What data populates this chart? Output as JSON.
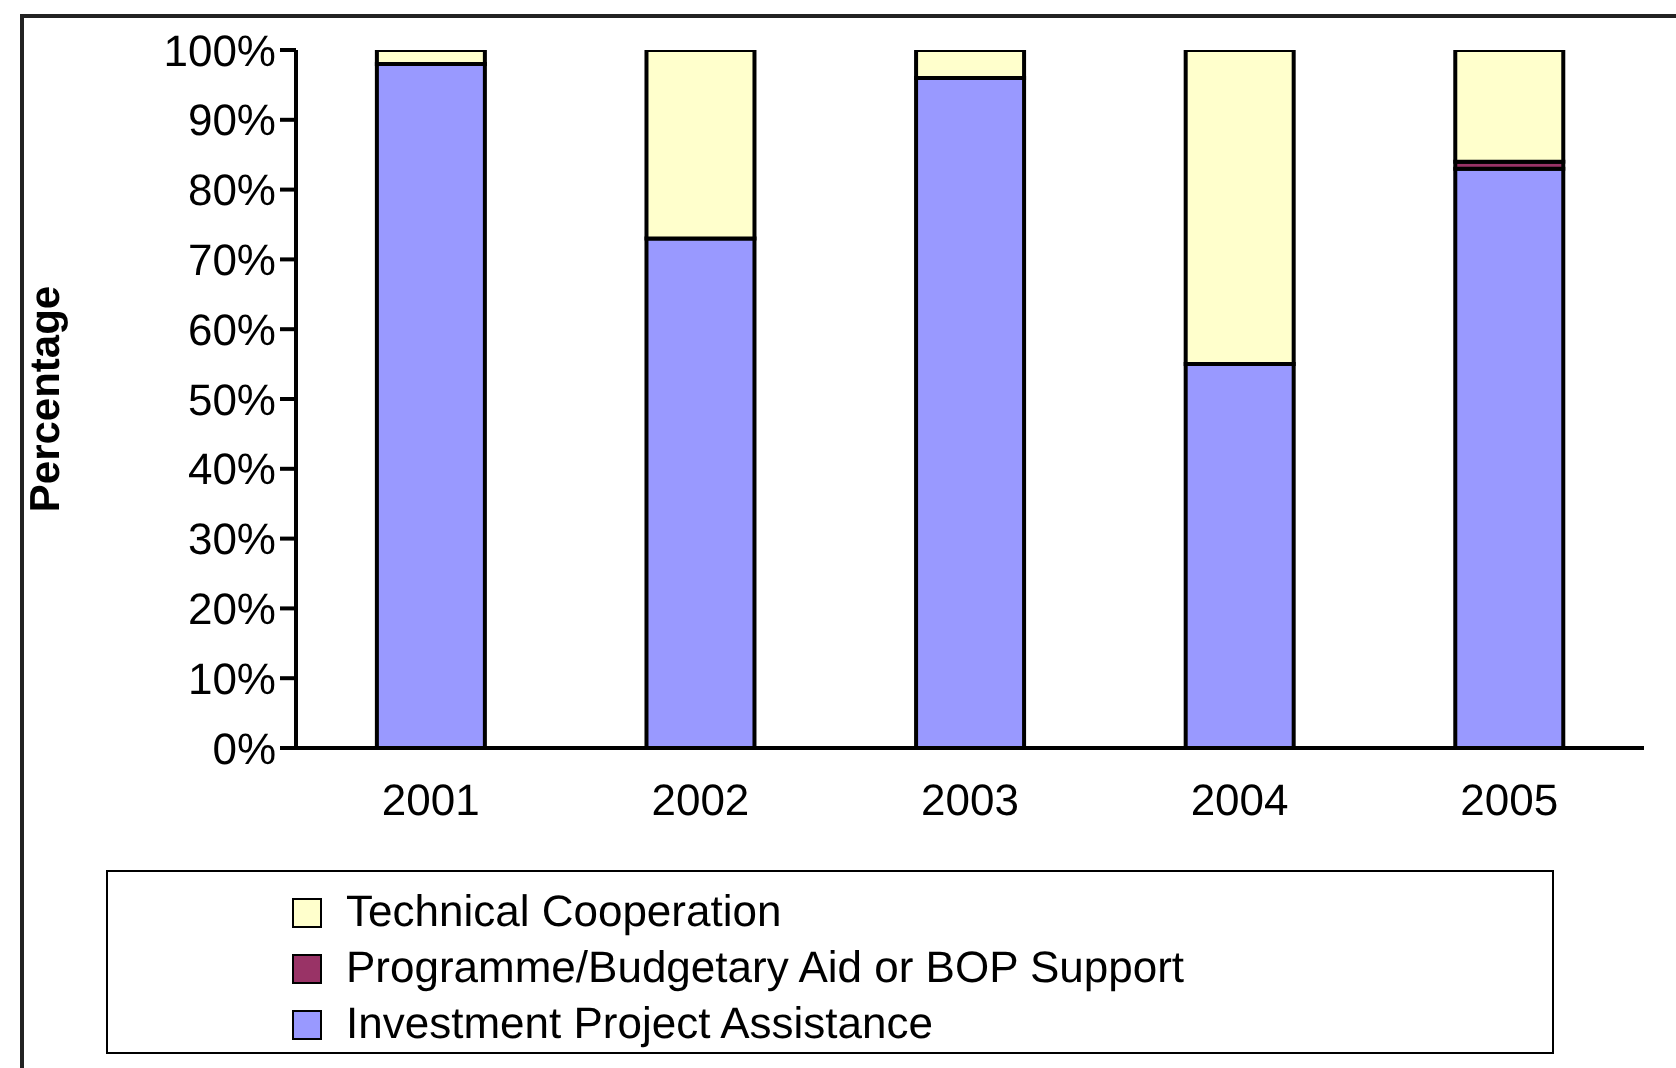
{
  "chart_data": {
    "type": "bar",
    "stacked": true,
    "ylabel": "Percentage",
    "categories": [
      "2001",
      "2002",
      "2003",
      "2004",
      "2005"
    ],
    "series": [
      {
        "name": "Investment Project Assistance",
        "color": "#9999ff",
        "values": [
          98,
          73,
          96,
          55,
          83
        ]
      },
      {
        "name": "Programme/Budgetary Aid or BOP Support",
        "color": "#993366",
        "values": [
          null,
          null,
          null,
          null,
          1
        ]
      },
      {
        "name": "Technical Cooperation",
        "color": "#ffffcc",
        "values": [
          2,
          27,
          4,
          45,
          16
        ]
      }
    ],
    "ylim": [
      0,
      100
    ],
    "yticks": [
      {
        "value": 0,
        "label": "0%"
      },
      {
        "value": 10,
        "label": "10%"
      },
      {
        "value": 20,
        "label": "20%"
      },
      {
        "value": 30,
        "label": "30%"
      },
      {
        "value": 40,
        "label": "40%"
      },
      {
        "value": 50,
        "label": "50%"
      },
      {
        "value": 60,
        "label": "60%"
      },
      {
        "value": 70,
        "label": "70%"
      },
      {
        "value": 80,
        "label": "80%"
      },
      {
        "value": 90,
        "label": "90%"
      },
      {
        "value": 100,
        "label": "100%"
      }
    ],
    "grid": false,
    "legend": "bottom"
  }
}
